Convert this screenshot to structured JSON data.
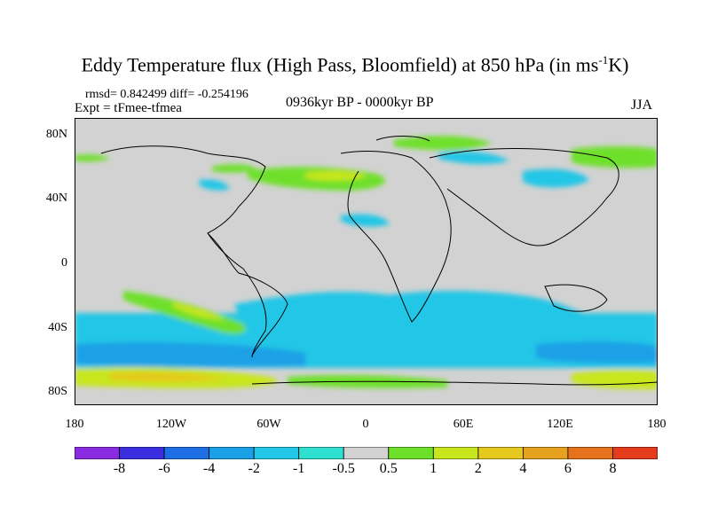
{
  "title": "Eddy Temperature flux (High Pass, Bloomfield) at 850 hPa (in ms",
  "title_sup": "-1",
  "title_end": "K)",
  "stats": "rmsd= 0.842499 diff= -0.254196",
  "experiment": "Expt = tFmee-tfmea",
  "period": "0936kyr BP - 0000kyr BP",
  "season": "JJA",
  "lat_labels": [
    "80N",
    "40N",
    "0",
    "40S",
    "80S"
  ],
  "lon_labels": [
    "180",
    "120W",
    "60W",
    "0",
    "60E",
    "120E",
    "180"
  ],
  "colorbar": {
    "labels": [
      "-8",
      "-6",
      "-4",
      "-2",
      "-1",
      "-0.5",
      "0.5",
      "1",
      "2",
      "4",
      "6",
      "8"
    ],
    "colors": [
      "#8a2be2",
      "#3a2ee0",
      "#1e6fe6",
      "#1aa0e6",
      "#22c6e6",
      "#2ee0d0",
      "#d2d2d2",
      "#6ee02a",
      "#c8e61e",
      "#e6c81e",
      "#e6a21e",
      "#e6721e",
      "#e63c1e"
    ]
  },
  "colors": {
    "background": "#d2d2d2",
    "coast": "#000000"
  }
}
